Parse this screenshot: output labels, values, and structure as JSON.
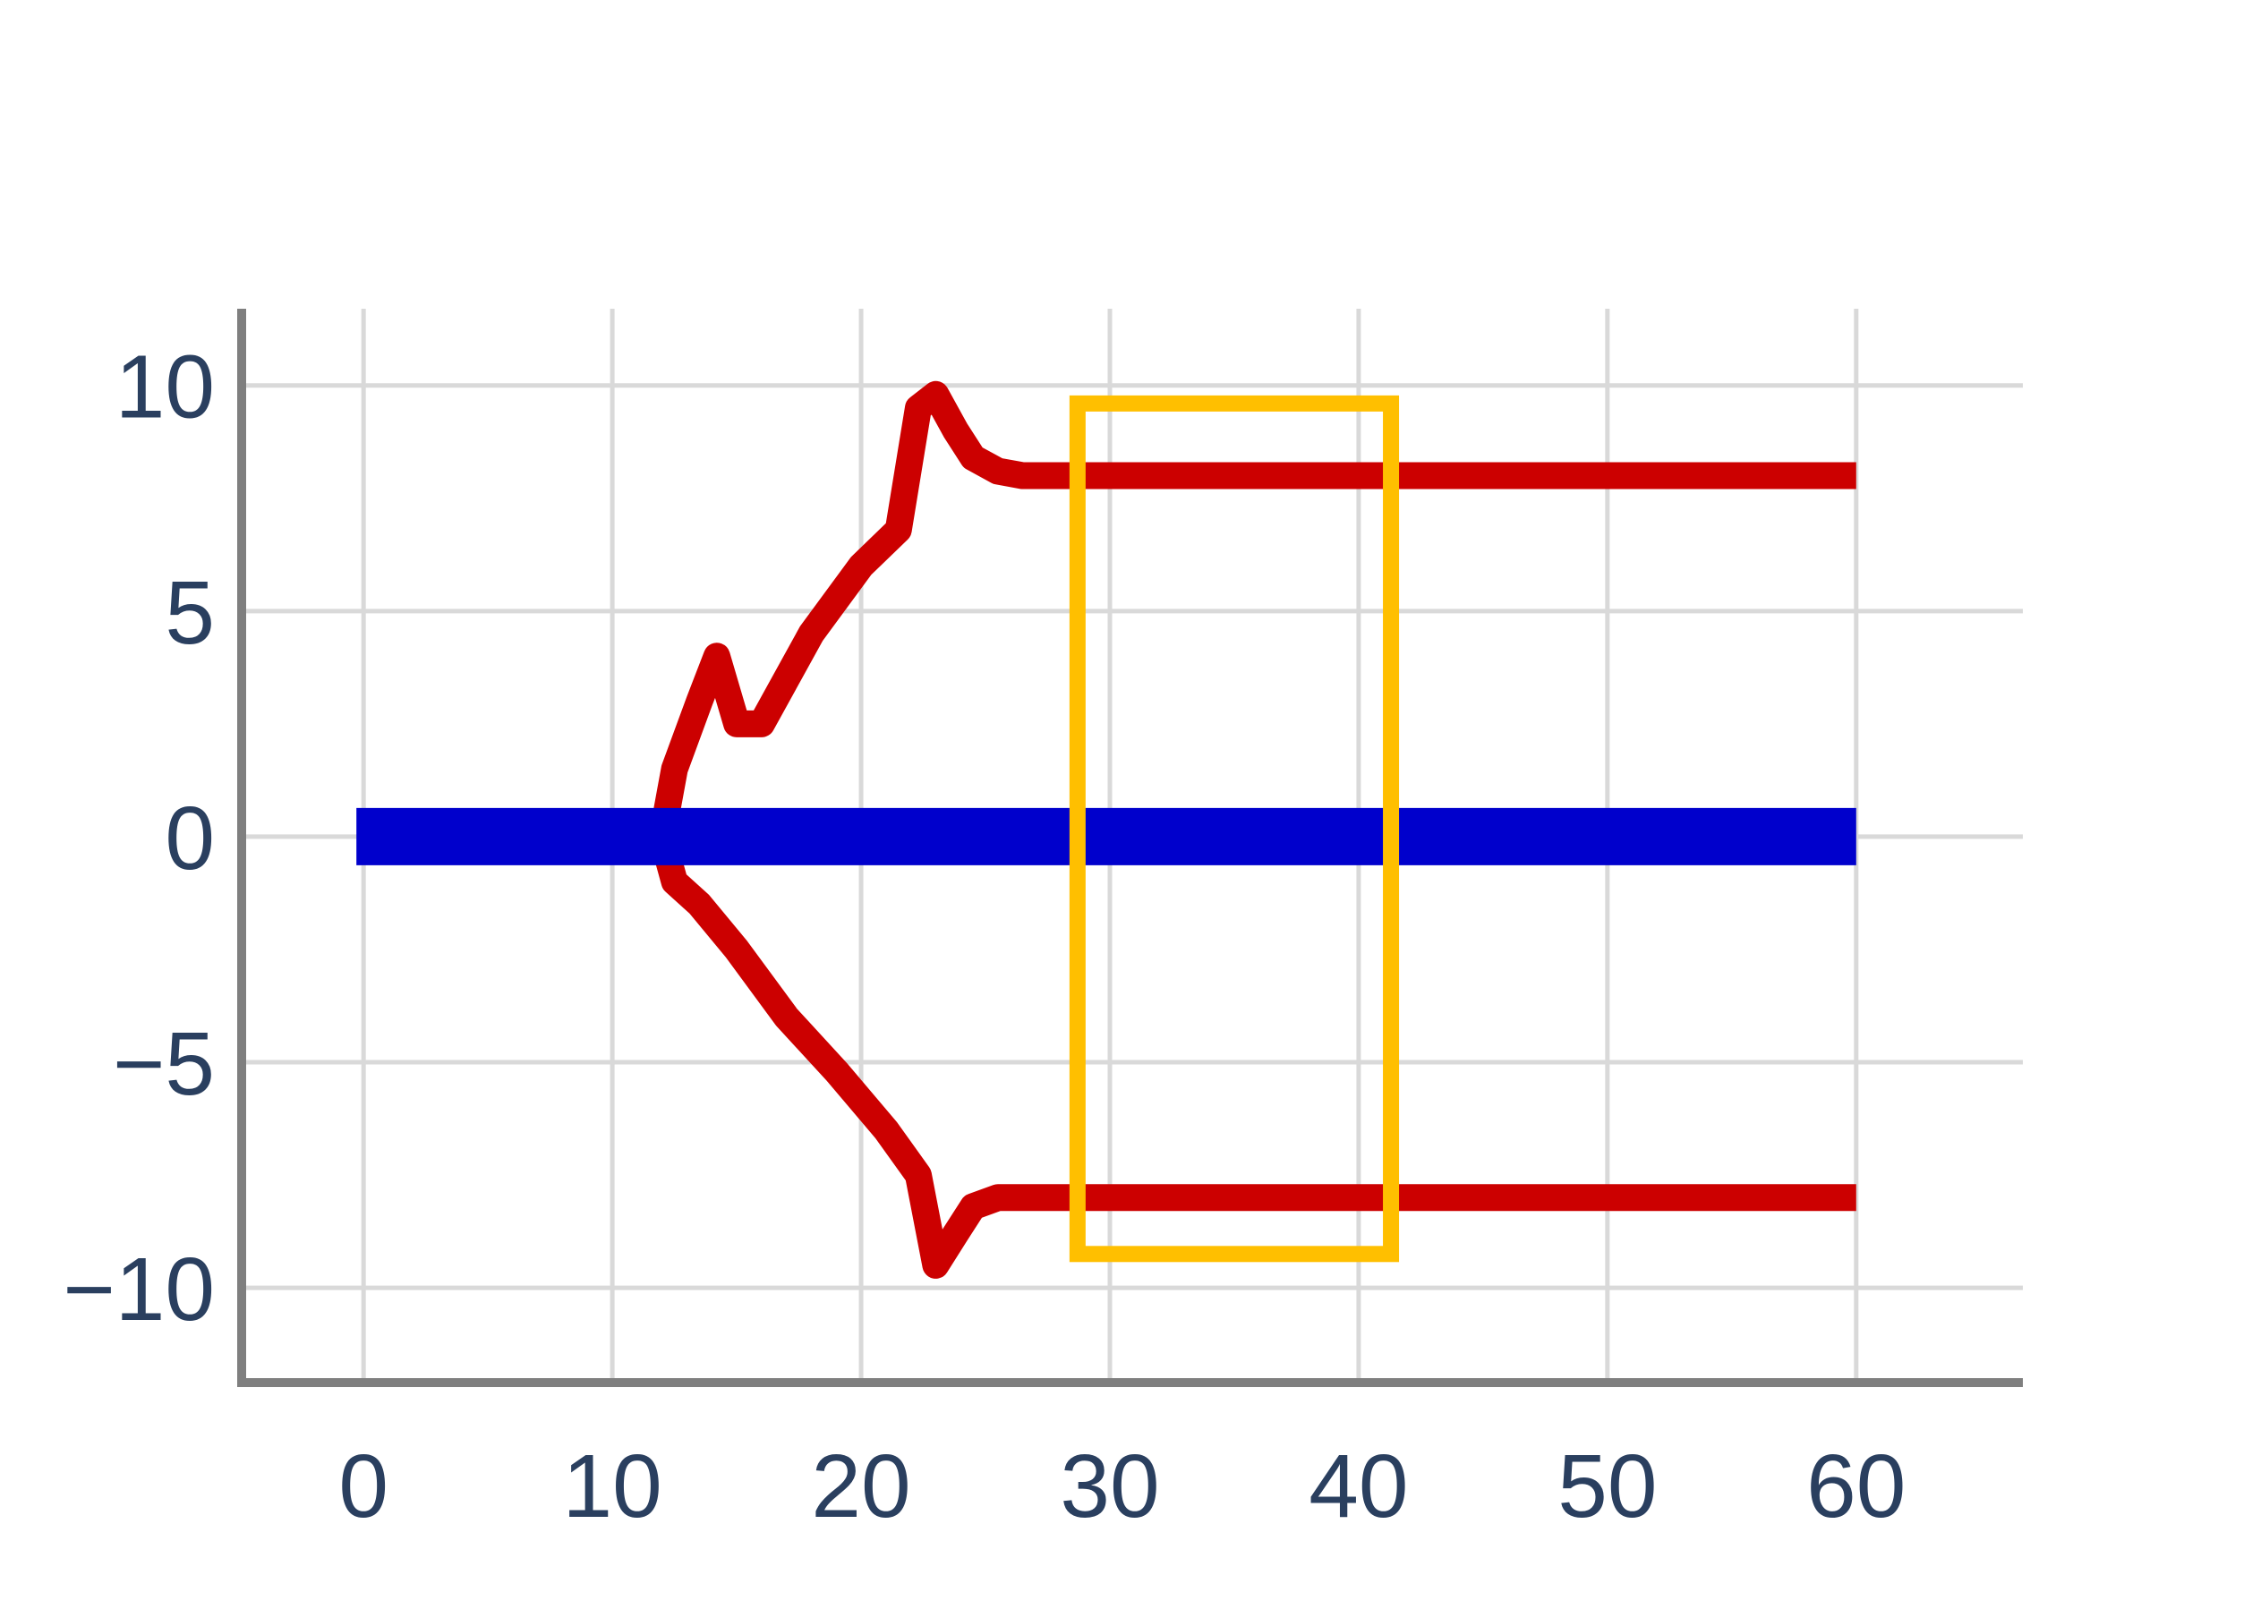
{
  "chart_data": {
    "type": "line",
    "title": "",
    "xlabel": "",
    "ylabel": "",
    "xlim": [
      -4.9,
      66.7
    ],
    "ylim": [
      -12.1,
      11.7
    ],
    "x_ticks": [
      0,
      10,
      20,
      30,
      40,
      50,
      60
    ],
    "x_tick_labels": [
      "0",
      "10",
      "20",
      "30",
      "40",
      "50",
      "60"
    ],
    "y_ticks": [
      10,
      5,
      0,
      -5,
      -10
    ],
    "y_tick_labels": [
      "10",
      "5",
      "0",
      "−5",
      "−10"
    ],
    "grid": true,
    "legend": "none",
    "series": [
      {
        "color": "#cc0000",
        "branch": "upper",
        "x": [
          0,
          2,
          4,
          8,
          12,
          12.5,
          13.5,
          14.2,
          15,
          16,
          18,
          20,
          21.5,
          22.3,
          23,
          23.8,
          24.5,
          25.5,
          26.5,
          30,
          35,
          40,
          45,
          50,
          55,
          60
        ],
        "y": [
          0,
          0,
          0,
          0,
          0,
          1.5,
          3,
          4,
          2.5,
          2.5,
          4.5,
          6,
          6.8,
          9.5,
          9.8,
          9,
          8.4,
          8.1,
          8.0,
          8.0,
          8.0,
          8.0,
          8.0,
          8.0,
          8.0,
          8.0
        ]
      },
      {
        "color": "#cc0000",
        "branch": "lower",
        "x": [
          0,
          2,
          4,
          8,
          12,
          12.5,
          13.5,
          15,
          17,
          19,
          21,
          22.3,
          23,
          23.8,
          24.5,
          25.5,
          26.5,
          30,
          35,
          40,
          45,
          50,
          55,
          60
        ],
        "y": [
          0,
          0,
          0,
          0,
          0,
          -1,
          -1.5,
          -2.5,
          -4,
          -5.2,
          -6.5,
          -7.5,
          -9.5,
          -8.8,
          -8.2,
          -8.0,
          -8.0,
          -8.0,
          -8.0,
          -8.0,
          -8.0,
          -8.0,
          -8.0,
          -8.0
        ]
      },
      {
        "color": "#0000cc",
        "x": [
          0,
          60
        ],
        "y": [
          0,
          0
        ]
      }
    ],
    "annotations": [
      {
        "type": "highlight-box",
        "color": "#ffbf00",
        "x_range": [
          28.7,
          41.3
        ],
        "y_range": [
          -9.25,
          9.6
        ]
      }
    ]
  }
}
